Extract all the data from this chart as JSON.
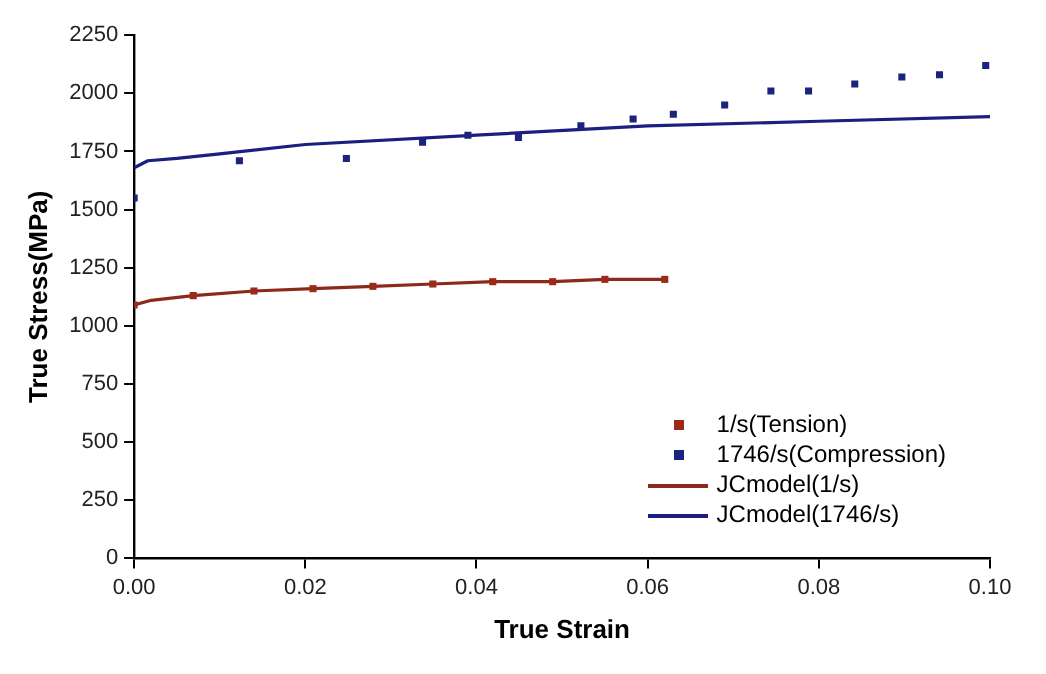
{
  "chart_data": {
    "type": "scatter",
    "xlabel": "True Strain",
    "ylabel": "True Stress(MPa)",
    "xlim": [
      0,
      0.1
    ],
    "xticks": [
      {
        "value": 0,
        "label": "0.00"
      },
      {
        "value": 0.02,
        "label": "0.02"
      },
      {
        "value": 0.04,
        "label": "0.04"
      },
      {
        "value": 0.06,
        "label": "0.06"
      },
      {
        "value": 0.08,
        "label": "0.08"
      },
      {
        "value": 0.1,
        "label": "0.10"
      }
    ],
    "ylim": [
      0,
      2250
    ],
    "yticks": [
      0,
      250,
      500,
      750,
      1000,
      1250,
      1500,
      1750,
      2000,
      2250
    ],
    "grid": false,
    "legend": "bottom right",
    "series": [
      {
        "name": "1/s(Tension)",
        "marker": "square",
        "color": "#9b2a1a",
        "x": [
          0,
          0.0069,
          0.014,
          0.0209,
          0.0279,
          0.0349,
          0.0419,
          0.0489,
          0.055,
          0.062
        ],
        "values": [
          1090,
          1130,
          1150,
          1160,
          1170,
          1180,
          1190,
          1190,
          1200,
          1200
        ]
      },
      {
        "name": "1746/s(Compression)",
        "marker": "square",
        "color": "#1a237e",
        "x": [
          0,
          0.0123,
          0.0248,
          0.0337,
          0.039,
          0.0449,
          0.0522,
          0.0583,
          0.063,
          0.069,
          0.0744,
          0.0788,
          0.0842,
          0.0897,
          0.0941,
          0.0995
        ],
        "values": [
          1550,
          1710,
          1720,
          1790,
          1820,
          1810,
          1860,
          1890,
          1910,
          1950,
          2010,
          2010,
          2040,
          2070,
          2080,
          2120
        ]
      },
      {
        "name": "JCmodel(1/s)",
        "type": "line",
        "marker": "none",
        "line_style": "solid",
        "color": "#8b2a1a",
        "x": [
          0,
          0.002,
          0.0069,
          0.014,
          0.0209,
          0.0279,
          0.0349,
          0.0419,
          0.0489,
          0.055,
          0.062
        ],
        "values": [
          1090,
          1110,
          1130,
          1150,
          1160,
          1170,
          1180,
          1190,
          1190,
          1200,
          1200
        ]
      },
      {
        "name": "JCmodel(1746/s)",
        "type": "line",
        "marker": "none",
        "line_style": "solid",
        "color": "#1a1f80",
        "x": [
          0,
          0.0016,
          0.005,
          0.01,
          0.02,
          0.04,
          0.06,
          0.08,
          0.1
        ],
        "values": [
          1680,
          1710,
          1720,
          1740,
          1780,
          1820,
          1860,
          1880,
          1900
        ]
      }
    ]
  }
}
